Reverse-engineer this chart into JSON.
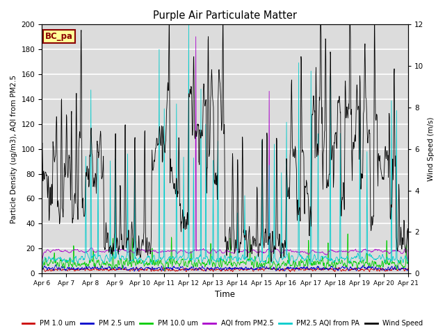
{
  "title": "Purple Air Particulate Matter",
  "ylabel_left": "Particle Density (ug/m3), AQI from PM2.5",
  "ylabel_right": "Wind Speed (m/s)",
  "xlabel": "Time",
  "ylim_left": [
    0,
    200
  ],
  "ylim_right": [
    0,
    12
  ],
  "annotation_text": "BC_pa",
  "annotation_color": "#8B0000",
  "annotation_bg": "#FFFF99",
  "background_color": "#dcdcdc",
  "grid_color": "white",
  "series_colors": {
    "pm1": "#cc0000",
    "pm25": "#0000cc",
    "pm10": "#00cc00",
    "aqi_pm25": "#aa00cc",
    "pm25_pa": "#00cccc",
    "wind": "#000000"
  },
  "x_tick_labels": [
    "Apr 6",
    "Apr 7",
    "Apr 8",
    "Apr 9",
    "Apr 10",
    "Apr 11",
    "Apr 12",
    "Apr 13",
    "Apr 14",
    "Apr 15",
    "Apr 16",
    "Apr 17",
    "Apr 18",
    "Apr 19",
    "Apr 20",
    "Apr 21"
  ],
  "legend_labels": [
    "PM 1.0 um",
    "PM 2.5 um",
    "PM 10.0 um",
    "AQI from PM2.5",
    "PM2.5 AQI from PA",
    "Wind Speed"
  ],
  "left_yticks": [
    0,
    20,
    40,
    60,
    80,
    100,
    120,
    140,
    160,
    180,
    200
  ],
  "right_yticks": [
    0,
    2,
    4,
    6,
    8,
    10,
    12
  ]
}
